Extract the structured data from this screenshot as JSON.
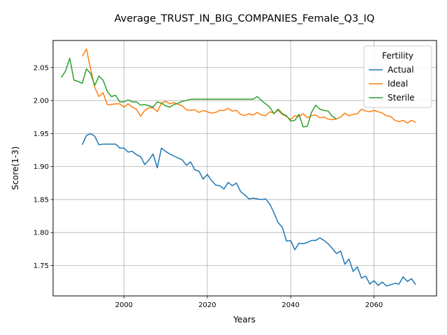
{
  "chart_data": {
    "type": "line",
    "title": "Average_TRUST_IN_BIG_COMPANIES_Female_Q3_IQ",
    "xlabel": "Years",
    "ylabel": "Score(1-3)",
    "xlim": [
      1983,
      2075
    ],
    "ylim": [
      1.704,
      2.091
    ],
    "xticks": [
      2000,
      2020,
      2040,
      2060
    ],
    "yticks": [
      1.75,
      1.8,
      1.85,
      1.9,
      1.95,
      2.0,
      2.05
    ],
    "ytick_labels": [
      "1.75",
      "1.80",
      "1.85",
      "1.90",
      "1.95",
      "2.00",
      "2.05"
    ],
    "grid": true,
    "legend": {
      "title": "Fertility",
      "position": "top-right"
    },
    "series": [
      {
        "name": "Actual",
        "color": "#1f77b4",
        "x": [
          1990,
          1991,
          1992,
          1993,
          1994,
          1995,
          1996,
          1997,
          1998,
          1999,
          2000,
          2001,
          2002,
          2003,
          2004,
          2005,
          2006,
          2007,
          2008,
          2009,
          2010,
          2011,
          2012,
          2013,
          2014,
          2015,
          2016,
          2017,
          2018,
          2019,
          2020,
          2021,
          2022,
          2023,
          2024,
          2025,
          2026,
          2027,
          2028,
          2029,
          2030,
          2031,
          2032,
          2033,
          2034,
          2035,
          2036,
          2037,
          2038,
          2039,
          2040,
          2041,
          2042,
          2043,
          2044,
          2045,
          2046,
          2047,
          2048,
          2049,
          2050,
          2051,
          2052,
          2053,
          2054,
          2055,
          2056,
          2057,
          2058,
          2059,
          2060,
          2061,
          2062,
          2063,
          2064,
          2065,
          2066,
          2067,
          2068,
          2069,
          2070
        ],
        "y": [
          1.933,
          1.947,
          1.95,
          1.946,
          1.933,
          1.934,
          1.934,
          1.934,
          1.934,
          1.928,
          1.928,
          1.922,
          1.923,
          1.918,
          1.915,
          1.903,
          1.91,
          1.919,
          1.898,
          1.928,
          1.923,
          1.919,
          1.916,
          1.913,
          1.91,
          1.902,
          1.907,
          1.895,
          1.893,
          1.881,
          1.888,
          1.879,
          1.872,
          1.871,
          1.866,
          1.876,
          1.871,
          1.875,
          1.862,
          1.857,
          1.851,
          1.852,
          1.851,
          1.85,
          1.851,
          1.843,
          1.83,
          1.815,
          1.808,
          1.787,
          1.788,
          1.774,
          1.784,
          1.783,
          1.785,
          1.788,
          1.788,
          1.792,
          1.788,
          1.783,
          1.776,
          1.768,
          1.772,
          1.752,
          1.76,
          1.741,
          1.748,
          1.731,
          1.734,
          1.722,
          1.727,
          1.72,
          1.725,
          1.719,
          1.721,
          1.723,
          1.722,
          1.733,
          1.726,
          1.73,
          1.721
        ]
      },
      {
        "name": "Ideal",
        "color": "#ff7f0e",
        "x": [
          1990,
          1991,
          1992,
          1993,
          1994,
          1995,
          1996,
          1997,
          1998,
          1999,
          2000,
          2001,
          2002,
          2003,
          2004,
          2005,
          2006,
          2007,
          2008,
          2009,
          2010,
          2011,
          2012,
          2013,
          2014,
          2015,
          2016,
          2017,
          2018,
          2019,
          2020,
          2021,
          2022,
          2023,
          2024,
          2025,
          2026,
          2027,
          2028,
          2029,
          2030,
          2031,
          2032,
          2033,
          2034,
          2035,
          2036,
          2037,
          2038,
          2039,
          2040,
          2041,
          2042,
          2043,
          2044,
          2045,
          2046,
          2047,
          2048,
          2049,
          2050,
          2051,
          2052,
          2053,
          2054,
          2055,
          2056,
          2057,
          2058,
          2059,
          2060,
          2061,
          2062,
          2063,
          2064,
          2065,
          2066,
          2067,
          2068,
          2069,
          2070
        ],
        "y": [
          2.067,
          2.078,
          2.048,
          2.02,
          2.006,
          2.012,
          1.994,
          1.994,
          1.995,
          1.995,
          1.99,
          1.995,
          1.99,
          1.987,
          1.976,
          1.985,
          1.989,
          1.989,
          1.983,
          1.996,
          1.999,
          1.995,
          1.997,
          1.994,
          1.992,
          1.986,
          1.985,
          1.986,
          1.982,
          1.985,
          1.983,
          1.981,
          1.982,
          1.985,
          1.985,
          1.988,
          1.984,
          1.985,
          1.979,
          1.977,
          1.98,
          1.978,
          1.982,
          1.978,
          1.977,
          1.983,
          1.981,
          1.985,
          1.979,
          1.976,
          1.971,
          1.977,
          1.976,
          1.98,
          1.974,
          1.977,
          1.978,
          1.974,
          1.975,
          1.972,
          1.971,
          1.972,
          1.975,
          1.981,
          1.977,
          1.979,
          1.98,
          1.987,
          1.984,
          1.983,
          1.985,
          1.983,
          1.981,
          1.977,
          1.976,
          1.97,
          1.968,
          1.97,
          1.966,
          1.97,
          1.967
        ]
      },
      {
        "name": "Sterile",
        "color": "#2ca02c",
        "x": [
          1985,
          1986,
          1987,
          1988,
          1989,
          1990,
          1991,
          1992,
          1993,
          1994,
          1995,
          1996,
          1997,
          1998,
          1999,
          2000,
          2001,
          2002,
          2003,
          2004,
          2005,
          2006,
          2007,
          2008,
          2009,
          2010,
          2011,
          2012,
          2013,
          2014,
          2015,
          2016,
          2017,
          2018,
          2019,
          2020,
          2021,
          2022,
          2023,
          2024,
          2025,
          2026,
          2027,
          2028,
          2029,
          2030,
          2031,
          2032,
          2033,
          2034,
          2035,
          2036,
          2037,
          2038,
          2039,
          2040,
          2041,
          2042,
          2043,
          2044,
          2045,
          2046,
          2047,
          2048,
          2049,
          2050,
          2051
        ],
        "y": [
          2.035,
          2.045,
          2.064,
          2.031,
          2.029,
          2.026,
          2.048,
          2.041,
          2.023,
          2.037,
          2.031,
          2.014,
          2.006,
          2.008,
          1.998,
          1.998,
          2.001,
          1.998,
          1.998,
          1.993,
          1.994,
          1.992,
          1.99,
          1.998,
          1.996,
          1.992,
          1.99,
          1.994,
          1.996,
          1.999,
          2.0,
          2.002,
          2.002,
          2.002,
          2.002,
          2.002,
          2.002,
          2.002,
          2.002,
          2.002,
          2.002,
          2.002,
          2.002,
          2.002,
          2.002,
          2.002,
          2.002,
          2.006,
          2.0,
          1.995,
          1.99,
          1.98,
          1.987,
          1.98,
          1.977,
          1.969,
          1.97,
          1.979,
          1.96,
          1.961,
          1.982,
          1.993,
          1.987,
          1.985,
          1.984,
          1.976,
          1.972
        ]
      }
    ]
  }
}
